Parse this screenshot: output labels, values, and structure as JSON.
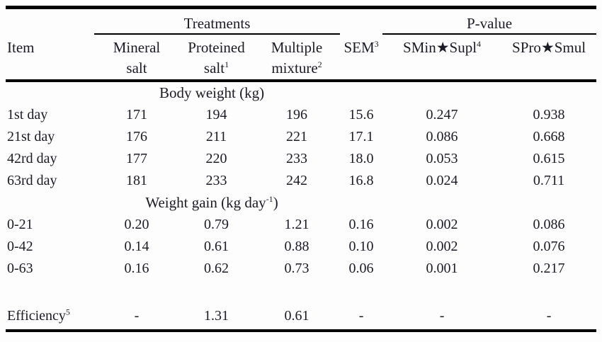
{
  "page": {
    "background_color": "#fdfdfd",
    "text_color": "#1b1b26",
    "rule_color": "#000000"
  },
  "table": {
    "group_header": {
      "treatments": "Treatments",
      "p_value": "P-value"
    },
    "column_headers": {
      "item": "Item",
      "mineral_line1": "Mineral",
      "mineral_line2": "salt",
      "mineral_line2_sup": "",
      "proteined_line1": "Proteined",
      "proteined_line2": "salt",
      "proteined_line2_sup": "1",
      "multiple_line1": "Multiple",
      "multiple_line2": "mixture",
      "multiple_line2_sup": "2",
      "sem": "SEM",
      "sem_sup": "3",
      "smin_supl": "SMin★Supl",
      "smin_supl_sup": "4",
      "spro_smul": "SPro★Smul",
      "spro_smul_sup": ""
    },
    "rows": [
      {
        "type": "section",
        "pre": "Body weight (kg)",
        "sup": "",
        "post": ""
      },
      {
        "type": "data",
        "label": "1st day",
        "label_sup": "",
        "values": [
          "171",
          "194",
          "196",
          "15.6",
          "0.247",
          "0.938"
        ]
      },
      {
        "type": "data",
        "label": "21st day",
        "label_sup": "",
        "values": [
          "176",
          "211",
          "221",
          "17.1",
          "0.086",
          "0.668"
        ]
      },
      {
        "type": "data",
        "label": "42rd day",
        "label_sup": "",
        "values": [
          "177",
          "220",
          "233",
          "18.0",
          "0.053",
          "0.615"
        ]
      },
      {
        "type": "data",
        "label": "63rd day",
        "label_sup": "",
        "values": [
          "181",
          "233",
          "242",
          "16.8",
          "0.024",
          "0.711"
        ]
      },
      {
        "type": "section",
        "pre": "Weight gain (kg day",
        "sup": "-1",
        "post": ")"
      },
      {
        "type": "data",
        "label": "0-21",
        "label_sup": "",
        "values": [
          "0.20",
          "0.79",
          "1.21",
          "0.16",
          "0.002",
          "0.086"
        ]
      },
      {
        "type": "data",
        "label": "0-42",
        "label_sup": "",
        "values": [
          "0.14",
          "0.61",
          "0.88",
          "0.10",
          "0.002",
          "0.076"
        ]
      },
      {
        "type": "data",
        "label": "0-63",
        "label_sup": "",
        "values": [
          "0.16",
          "0.62",
          "0.73",
          "0.06",
          "0.001",
          "0.217"
        ]
      },
      {
        "type": "spacer"
      },
      {
        "type": "data",
        "row_class": "efficiency-row",
        "label": "Efficiency",
        "label_sup": "5",
        "values": [
          "-",
          "1.31",
          "0.61",
          "-",
          "-",
          "-"
        ]
      }
    ]
  }
}
